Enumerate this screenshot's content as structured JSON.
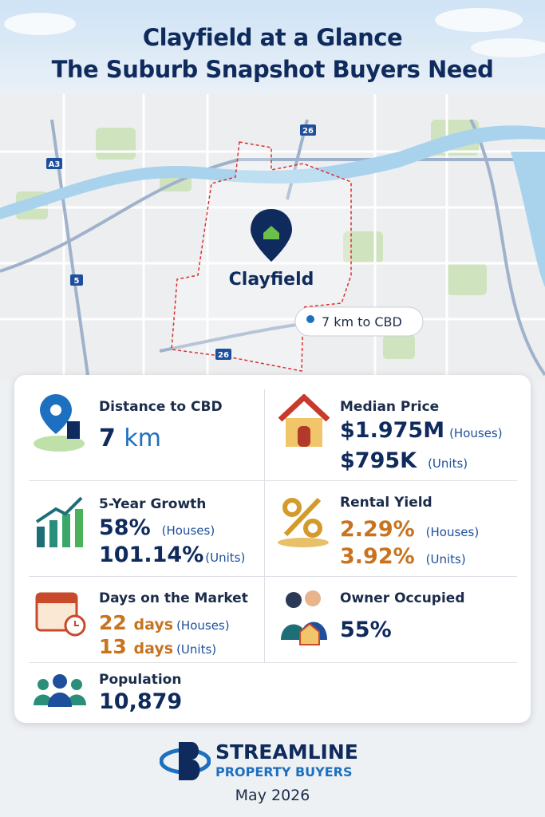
{
  "header": {
    "title_line1": "Clayfield at a Glance",
    "title_line2": "The Suburb Snapshot Buyers Need"
  },
  "map": {
    "suburb": "Clayfield",
    "distance_callout": "7 km to CBD",
    "road_labels": [
      "A3",
      "5",
      "26",
      "26"
    ]
  },
  "stats": [
    {
      "label": "Distance to CBD",
      "value": "7",
      "unit": "km"
    },
    {
      "label": "Median Price",
      "rows": [
        {
          "value": "$1.975M",
          "note": "(Houses)"
        },
        {
          "value": "$795K",
          "note": "(Units)"
        }
      ]
    },
    {
      "label": "5-Year Growth",
      "rows": [
        {
          "value": "58%",
          "note": "(Houses)"
        },
        {
          "value": "101.14%",
          "note": "(Units)"
        }
      ]
    },
    {
      "label": "Rental Yield",
      "rows": [
        {
          "value": "2.29%",
          "note": "(Houses)"
        },
        {
          "value": "3.92%",
          "note": "(Units)"
        }
      ]
    },
    {
      "label": "Days on the Market",
      "rows": [
        {
          "value": "22",
          "unit": "days",
          "note": "(Houses)"
        },
        {
          "value": "13",
          "unit": "days",
          "note": "(Units)"
        }
      ]
    },
    {
      "label": "Owner Occupied",
      "value": "55%"
    },
    {
      "label": "Population",
      "value": "10,879"
    }
  ],
  "footer": {
    "brand": "STREAMLINE",
    "tagline": "PROPERTY BUYERS",
    "date": "May 2026"
  }
}
